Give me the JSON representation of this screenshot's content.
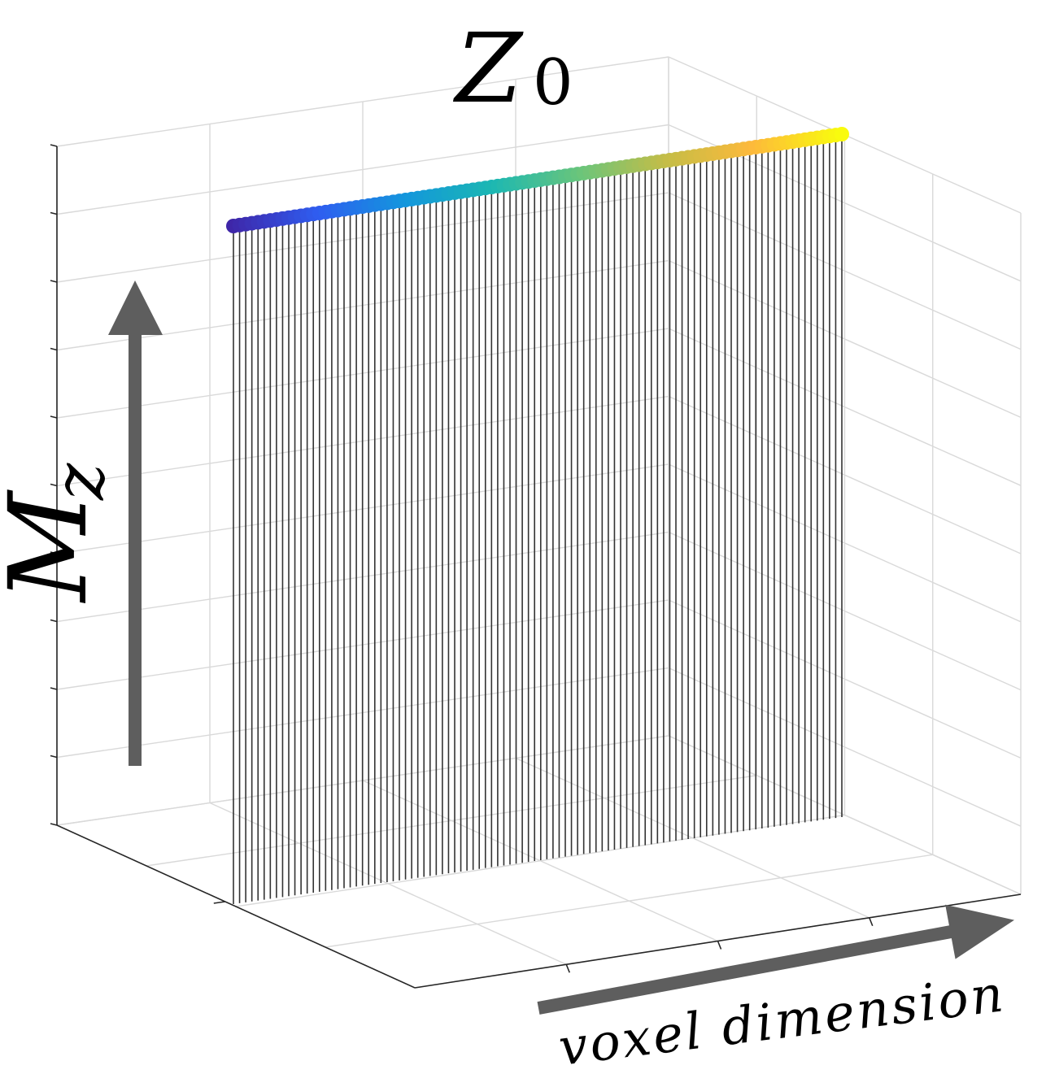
{
  "chart_data": {
    "type": "stem3d",
    "title": "Z",
    "title_subscript": "0",
    "ylabel": "M",
    "ylabel_subscript": "z",
    "xlabel": "voxel dimension",
    "n_points": 100,
    "values_constant": 1,
    "grid": true,
    "colormap": "parula",
    "colors": {
      "stem": "#333333",
      "arrow": "#5e5e5e",
      "grid": "#d9d9d9",
      "axis": "#262626",
      "colormap_stops": [
        "#3e26a8",
        "#2f5df0",
        "#1396dd",
        "#1bb7b3",
        "#68c57c",
        "#c4bd47",
        "#fdb93b",
        "#f9fb0e"
      ]
    }
  }
}
